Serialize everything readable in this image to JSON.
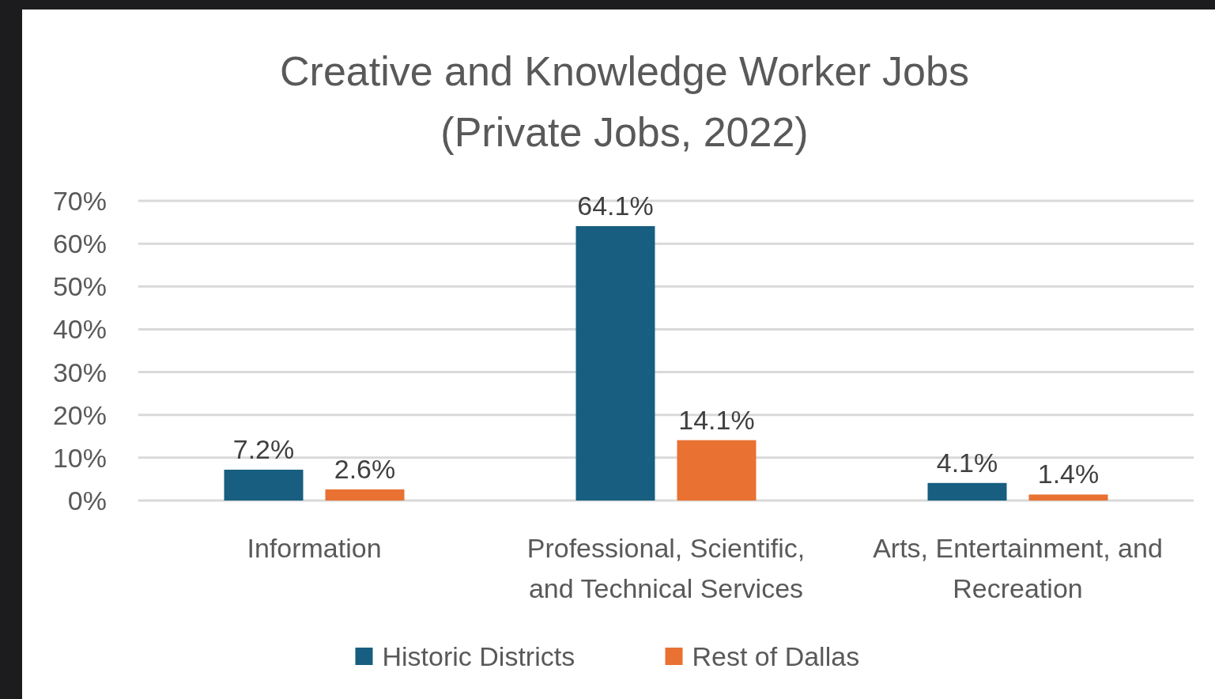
{
  "chart_data": {
    "type": "bar",
    "title": "Creative and Knowledge Worker Jobs\n(Private Jobs, 2022)",
    "categories": [
      "Information",
      "Professional, Scientific, and Technical Services",
      "Arts, Entertainment, and Recreation"
    ],
    "series": [
      {
        "name": "Historic Districts",
        "color": "#175e80",
        "values": [
          7.2,
          64.1,
          4.1
        ],
        "value_labels": [
          "7.2%",
          "64.1%",
          "4.1%"
        ]
      },
      {
        "name": "Rest of Dallas",
        "color": "#e97132",
        "values": [
          2.6,
          14.1,
          1.4
        ],
        "value_labels": [
          "2.6%",
          "14.1%",
          "1.4%"
        ]
      }
    ],
    "ylim": [
      0,
      70
    ],
    "yticks": [
      {
        "value": 0,
        "label": "0%"
      },
      {
        "value": 10,
        "label": "10%"
      },
      {
        "value": 20,
        "label": "20%"
      },
      {
        "value": 30,
        "label": "30%"
      },
      {
        "value": 40,
        "label": "40%"
      },
      {
        "value": 50,
        "label": "50%"
      },
      {
        "value": 60,
        "label": "60%"
      },
      {
        "value": 70,
        "label": "70%"
      }
    ],
    "grid": "y",
    "legend": "bottom"
  }
}
